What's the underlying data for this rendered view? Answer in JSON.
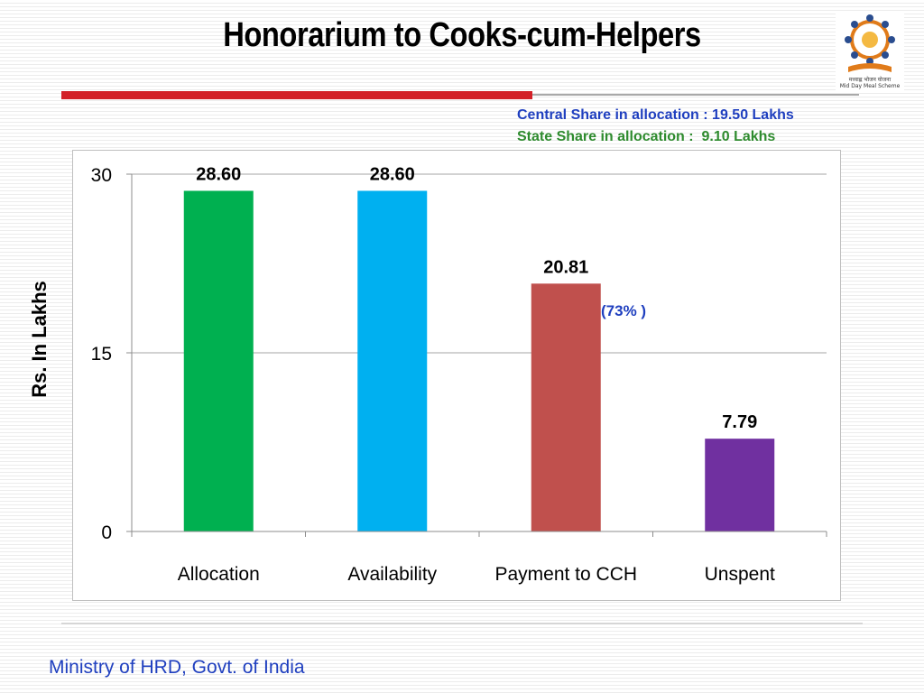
{
  "slide": {
    "title": "Honorarium to Cooks-cum-Helpers",
    "central_share": "Central Share in allocation : 19.50 Lakhs",
    "state_share": "State Share in allocation :  9.10 Lakhs",
    "percent_note": "(73% )",
    "footer": "Ministry of HRD, Govt. of India",
    "logo_text": "मध्याह्न भोजन योजना",
    "logo_subtext": "Mid Day Meal Scheme",
    "colors": {
      "accent_red": "#d32027",
      "text_blue": "#1f3fbf",
      "text_green": "#2e8b2e"
    }
  },
  "chart_data": {
    "type": "bar",
    "categories": [
      "Allocation",
      "Availability",
      "Payment to CCH",
      "Unspent"
    ],
    "values": [
      28.6,
      28.6,
      20.81,
      7.79
    ],
    "data_labels": [
      "28.60",
      "28.60",
      "20.81",
      "7.79"
    ],
    "colors": [
      "#00b050",
      "#00b0f0",
      "#c0504d",
      "#7030a0"
    ],
    "ylabel": "Rs. In Lakhs",
    "xlabel": "",
    "ylim": [
      0,
      30
    ],
    "yticks": [
      0,
      15,
      30
    ],
    "grid": true,
    "legend": "none"
  }
}
